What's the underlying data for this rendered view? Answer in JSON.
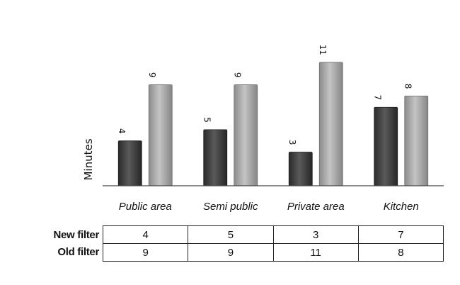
{
  "chart_data": {
    "type": "bar",
    "title": "",
    "xlabel": "",
    "ylabel": "Minutes",
    "ylim": [
      0,
      11.5
    ],
    "grid": false,
    "categories": [
      "Public area",
      "Semi public",
      "Private area",
      "Kitchen"
    ],
    "series": [
      {
        "name": "New filter",
        "values": [
          4,
          5,
          3,
          7
        ],
        "color": "#3d3d3d"
      },
      {
        "name": "Old filter",
        "values": [
          9,
          9,
          11,
          8
        ],
        "color": "#a6a6a6"
      }
    ]
  },
  "table": {
    "rows": [
      {
        "label": "New filter",
        "values": [
          "4",
          "5",
          "3",
          "7"
        ]
      },
      {
        "label": "Old filter",
        "values": [
          "9",
          "9",
          "11",
          "8"
        ]
      }
    ]
  }
}
